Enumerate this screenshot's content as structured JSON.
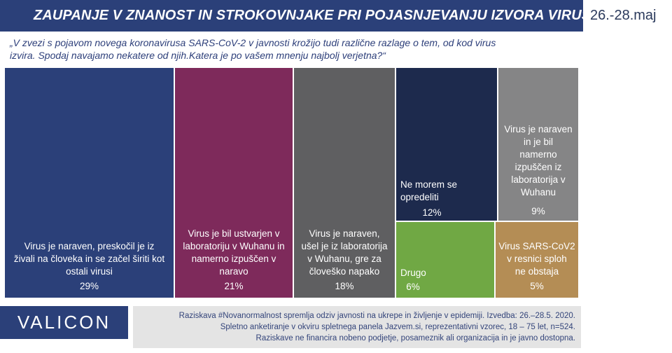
{
  "header": {
    "title": "ZAUPANJE V ZNANOST IN STROKOVNJAKE PRI POJASNJEVANJU IZVORA VIRUSA",
    "date": "26.-28.maj"
  },
  "question": {
    "line1": "„V zvezi s pojavom novega koronavirusa  SARS-CoV-2 v javnosti krožijo tudi različne razlage o tem, od kod virus",
    "line2": "izvira. Spodaj navajamo nekatere od njih.Katera je po vašem mnenju najbolj verjetna?“"
  },
  "chart_data": {
    "type": "treemap",
    "unit": "%",
    "items": [
      {
        "label": "Virus je naraven, preskočil je iz živali na človeka in se začel širiti kot ostali virusi",
        "value": 29,
        "value_label": "29%",
        "color": "#2b4079"
      },
      {
        "label": "Virus je bil ustvarjen v laboratoriju v Wuhanu in namerno izpuščen v naravo",
        "value": 21,
        "value_label": "21%",
        "color": "#7e2a5b"
      },
      {
        "label": "Virus je naraven, ušel je iz laboratorija v Wuhanu, gre za človeško napako",
        "value": 18,
        "value_label": "18%",
        "color": "#5f5f61"
      },
      {
        "label": "Ne morem se opredeliti",
        "value": 12,
        "value_label": "12%",
        "color": "#1d2a4d"
      },
      {
        "label": "Virus je naraven in je bil namerno izpuščen iz laboratorija v Wuhanu",
        "value": 9,
        "value_label": "9%",
        "color": "#858586"
      },
      {
        "label": "Drugo",
        "value": 6,
        "value_label": "6%",
        "color": "#70a844"
      },
      {
        "label": "Virus SARS-CoV2 v resnici sploh ne obstaja",
        "value": 5,
        "value_label": "5%",
        "color": "#b48d55"
      }
    ]
  },
  "footer": {
    "logo": "VALICON",
    "note_line1": "Raziskava #Novanormalnost spremlja  odziv javnosti  na ukrepe in življenje v epidemiji.  Izvedba: 26.–28.5. 2020.",
    "note_line2": "Spletno anketiranje v okviru spletnega panela Jazvem.si, reprezentativni vzorec, 18 – 75 let, n=524.",
    "note_line3": "Raziskave ne financira nobeno podjetje, posameznik ali organizacija in je javno dostopna."
  }
}
